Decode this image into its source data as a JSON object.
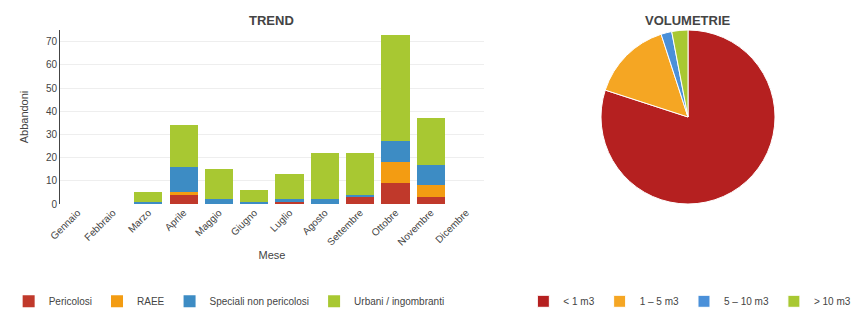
{
  "chart_data": [
    {
      "type": "bar",
      "title": "TREND",
      "xlabel": "Mese",
      "ylabel": "Abbandoni",
      "categories": [
        "Gennaio",
        "Febbraio",
        "Marzo",
        "Aprile",
        "Maggio",
        "Giugno",
        "Luglio",
        "Agosto",
        "Settembre",
        "Ottobre",
        "Novembre",
        "Dicembre"
      ],
      "series": [
        {
          "name": "Pericolosi",
          "color": "#c0392b",
          "values": [
            0,
            0,
            0,
            4,
            0,
            0,
            1,
            0,
            3,
            9,
            3,
            0
          ]
        },
        {
          "name": "RAEE",
          "color": "#f39c12",
          "values": [
            0,
            0,
            0,
            1,
            0,
            0,
            0,
            0,
            0,
            9,
            5,
            0
          ]
        },
        {
          "name": "Speciali non pericolosi",
          "color": "#3d8cc4",
          "values": [
            0,
            0,
            1,
            11,
            2,
            1,
            1,
            2,
            1,
            9,
            9,
            0
          ]
        },
        {
          "name": "Urbani / ingombranti",
          "color": "#a8c832",
          "values": [
            0,
            0,
            4,
            18,
            13,
            5,
            11,
            20,
            18,
            46,
            20,
            0
          ]
        }
      ],
      "stacked": true,
      "ylim": [
        0,
        75
      ],
      "yticks": [
        0,
        10,
        20,
        30,
        40,
        50,
        60,
        70
      ],
      "grid": true,
      "legend": "lower left"
    },
    {
      "type": "pie",
      "title": "VOLUMETRIE",
      "categories": [
        "< 1 m3",
        "1 – 5 m3",
        "5 – 10 m3",
        "> 10 m3"
      ],
      "values": [
        80,
        15,
        2,
        3
      ],
      "colors": [
        "#b52020",
        "#f5a623",
        "#4a90d9",
        "#a8c832"
      ],
      "legend": "lower right"
    }
  ]
}
